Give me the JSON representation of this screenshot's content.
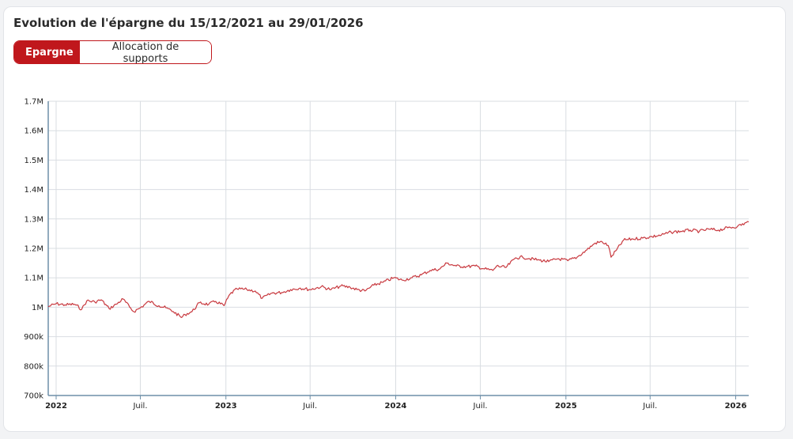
{
  "header": {
    "title": "Evolution de l'épargne du 15/12/2021 au 29/01/2026"
  },
  "tabs": [
    {
      "label": "Epargne",
      "active": true
    },
    {
      "label": "Allocation de supports",
      "active": false
    }
  ],
  "colors": {
    "accent": "#c0171c",
    "line": "#c8393f",
    "grid": "#d9dde2",
    "axis": "#6e8fa8"
  },
  "chart_data": {
    "type": "line",
    "title": "Evolution de l'épargne du 15/12/2021 au 29/01/2026",
    "xlabel": "",
    "ylabel": "",
    "ylim": [
      700000,
      1700000
    ],
    "xlim": [
      "2021-12-15",
      "2026-01-29"
    ],
    "y_ticks": [
      {
        "value": 700000,
        "label": "700k"
      },
      {
        "value": 800000,
        "label": "800k"
      },
      {
        "value": 900000,
        "label": "900k"
      },
      {
        "value": 1000000,
        "label": "1M"
      },
      {
        "value": 1100000,
        "label": "1.1M"
      },
      {
        "value": 1200000,
        "label": "1.2M"
      },
      {
        "value": 1300000,
        "label": "1.3M"
      },
      {
        "value": 1400000,
        "label": "1.4M"
      },
      {
        "value": 1500000,
        "label": "1.5M"
      },
      {
        "value": 1600000,
        "label": "1.6M"
      },
      {
        "value": 1700000,
        "label": "1.7M"
      }
    ],
    "x_ticks": [
      {
        "date": "2022-01-01",
        "label": "2022",
        "major": true
      },
      {
        "date": "2022-07-01",
        "label": "Juil.",
        "major": false
      },
      {
        "date": "2023-01-01",
        "label": "2023",
        "major": true
      },
      {
        "date": "2023-07-01",
        "label": "Juil.",
        "major": false
      },
      {
        "date": "2024-01-01",
        "label": "2024",
        "major": true
      },
      {
        "date": "2024-07-01",
        "label": "Juil.",
        "major": false
      },
      {
        "date": "2025-01-01",
        "label": "2025",
        "major": true
      },
      {
        "date": "2025-07-01",
        "label": "Juil.",
        "major": false
      },
      {
        "date": "2026-01-01",
        "label": "2026",
        "major": true
      }
    ],
    "grid": true,
    "legend": "none",
    "series": [
      {
        "x": [
          "2021-12-15",
          "2022-01-01",
          "2022-01-20",
          "2022-02-10",
          "2022-02-25",
          "2022-03-08",
          "2022-03-25",
          "2022-04-08",
          "2022-04-25",
          "2022-05-10",
          "2022-05-25",
          "2022-06-08",
          "2022-06-17",
          "2022-07-01",
          "2022-07-20",
          "2022-08-10",
          "2022-08-25",
          "2022-09-10",
          "2022-09-28",
          "2022-10-05",
          "2022-10-20",
          "2022-11-05",
          "2022-11-25",
          "2022-12-10",
          "2022-12-28",
          "2023-01-10",
          "2023-01-25",
          "2023-02-15",
          "2023-03-05",
          "2023-03-20",
          "2023-04-10",
          "2023-05-01",
          "2023-05-20",
          "2023-06-10",
          "2023-07-01",
          "2023-07-25",
          "2023-08-15",
          "2023-09-05",
          "2023-09-25",
          "2023-10-10",
          "2023-10-27",
          "2023-11-15",
          "2023-12-05",
          "2023-12-28",
          "2024-01-15",
          "2024-02-05",
          "2024-02-25",
          "2024-03-15",
          "2024-04-05",
          "2024-04-20",
          "2024-05-10",
          "2024-06-01",
          "2024-06-20",
          "2024-07-10",
          "2024-07-28",
          "2024-08-05",
          "2024-08-25",
          "2024-09-15",
          "2024-09-30",
          "2024-10-15",
          "2024-11-05",
          "2024-11-25",
          "2024-12-15",
          "2025-01-05",
          "2025-01-25",
          "2025-02-15",
          "2025-03-05",
          "2025-03-20",
          "2025-04-02",
          "2025-04-08",
          "2025-04-20",
          "2025-05-05",
          "2025-05-25",
          "2025-06-15",
          "2025-07-05",
          "2025-07-25",
          "2025-08-15",
          "2025-09-05",
          "2025-09-25",
          "2025-10-15",
          "2025-11-05",
          "2025-11-25",
          "2025-12-15",
          "2026-01-05",
          "2026-01-29"
        ],
        "y": [
          1002000,
          1012000,
          1008000,
          1010000,
          993000,
          1022000,
          1018000,
          1025000,
          995000,
          1010000,
          1028000,
          1000000,
          985000,
          998000,
          1020000,
          1005000,
          998000,
          985000,
          965000,
          975000,
          985000,
          1015000,
          1010000,
          1020000,
          1005000,
          1045000,
          1062000,
          1060000,
          1055000,
          1030000,
          1048000,
          1050000,
          1060000,
          1065000,
          1060000,
          1070000,
          1060000,
          1072000,
          1068000,
          1060000,
          1055000,
          1075000,
          1085000,
          1100000,
          1092000,
          1100000,
          1110000,
          1125000,
          1130000,
          1150000,
          1140000,
          1138000,
          1140000,
          1130000,
          1125000,
          1140000,
          1135000,
          1168000,
          1170000,
          1165000,
          1160000,
          1155000,
          1165000,
          1158000,
          1170000,
          1195000,
          1218000,
          1222000,
          1210000,
          1170000,
          1195000,
          1228000,
          1232000,
          1235000,
          1240000,
          1245000,
          1255000,
          1258000,
          1262000,
          1258000,
          1265000,
          1262000,
          1270000,
          1275000,
          1290000
        ]
      }
    ]
  }
}
